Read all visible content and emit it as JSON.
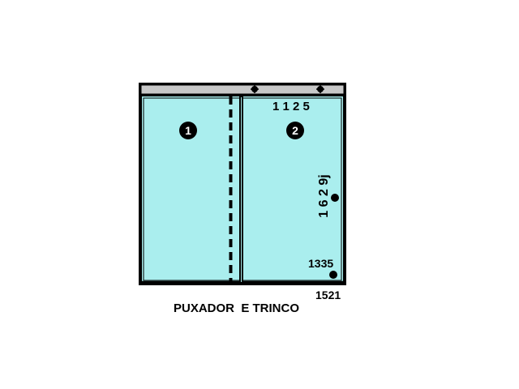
{
  "labels": {
    "panel_1": "1",
    "panel_2": "2",
    "top_dimension": "1 1 2 5",
    "side_dimension": "1 6 2 9j",
    "lock_height": "1335",
    "bottom_dimension": "1521",
    "caption": "PUXADOR  E TRINCO"
  },
  "colors": {
    "glass": "#aaeeee",
    "frame": "#000000",
    "rail": "#c8c8c8",
    "background": "#ffffff"
  }
}
